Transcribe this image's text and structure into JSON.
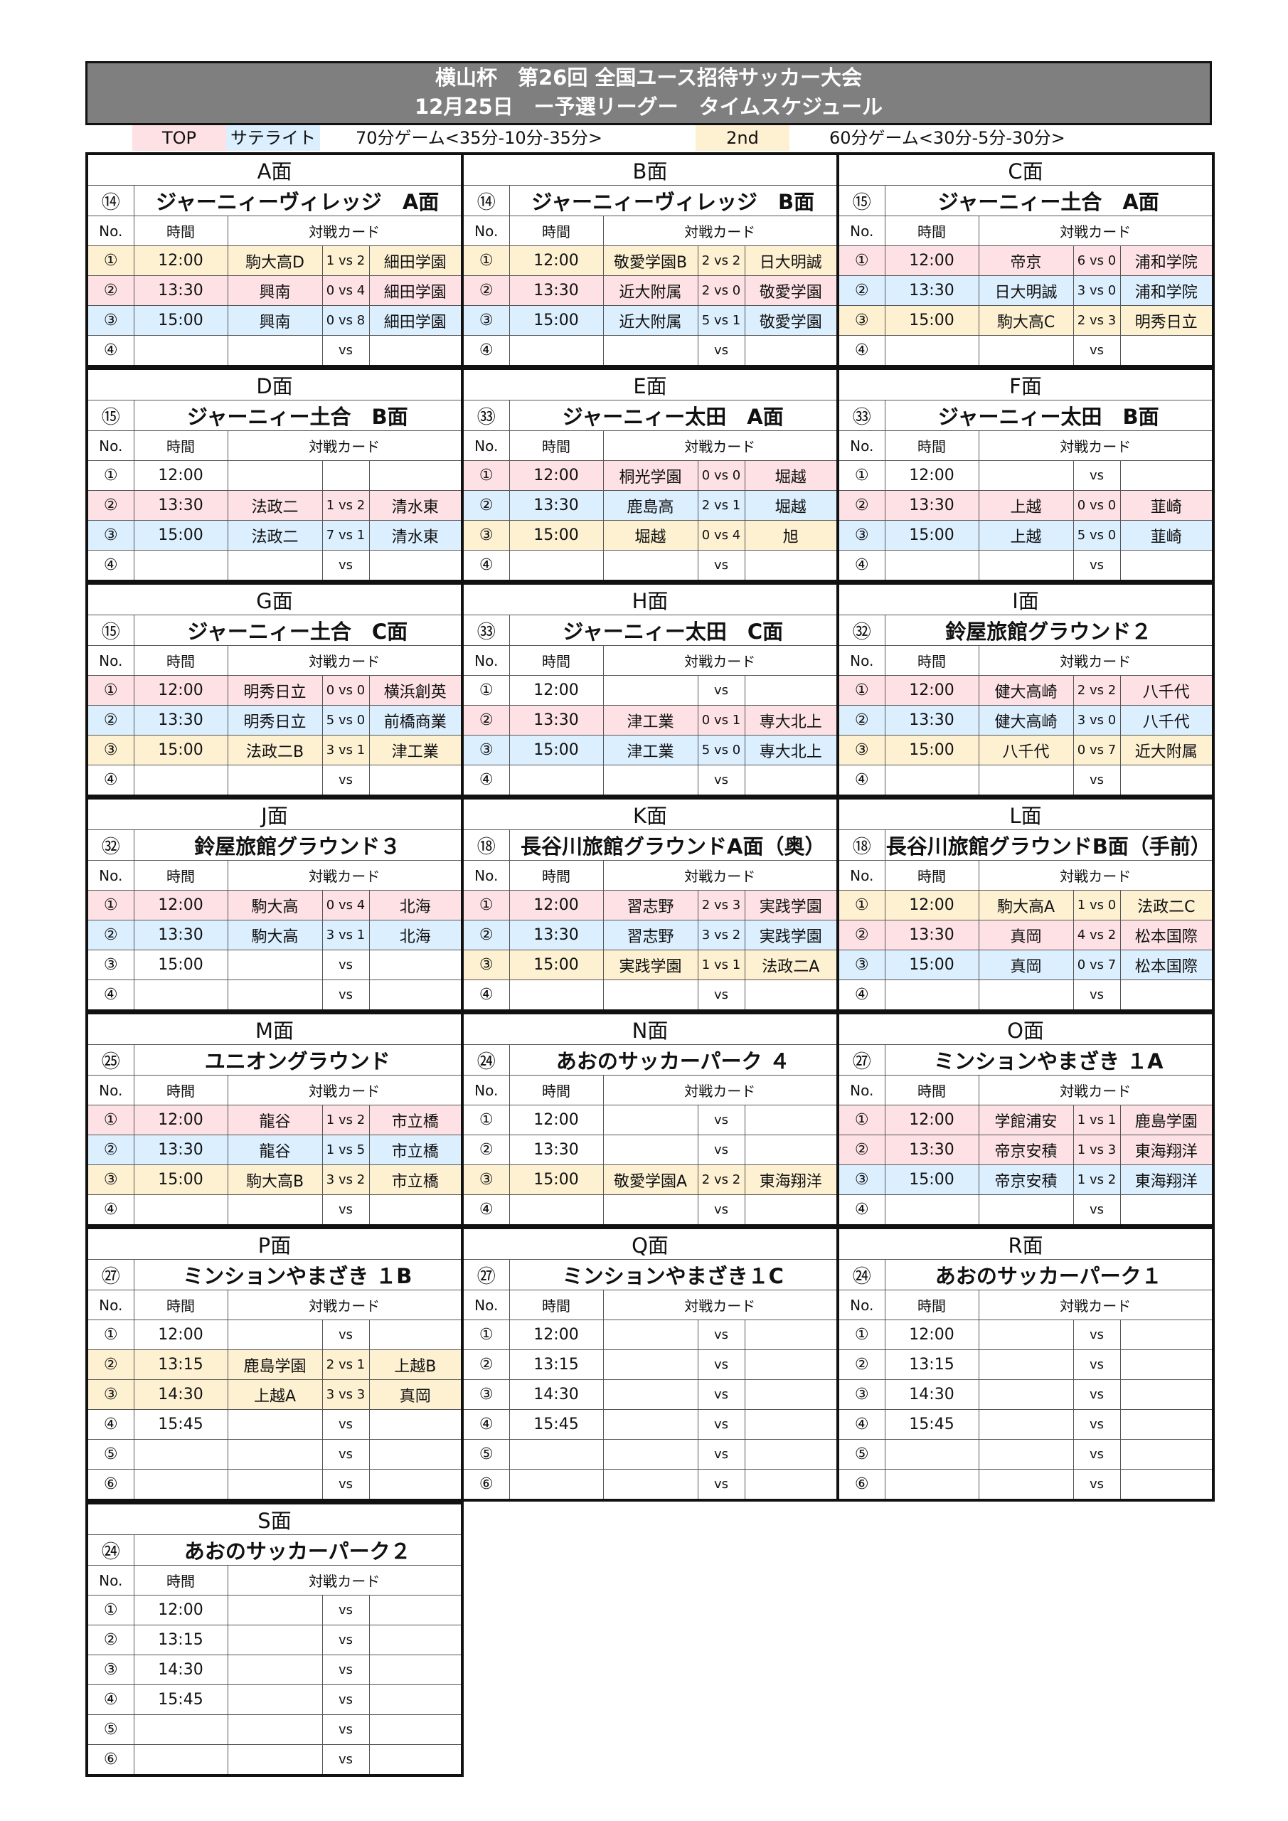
{
  "header": {
    "title_line1": "横山杯　第26回 全国ユース招待サッカー大会",
    "title_line2": "12月25日　ー予選リーグー　タイムスケジュール"
  },
  "legend": {
    "top": "TOP",
    "satellite": "サテライト",
    "rule_70": "70分ゲーム<35分-10分-35分>",
    "second": "2nd",
    "rule_60": "60分ゲーム<30分-5分-30分>",
    "colors": {
      "top": "#fde1e4",
      "satellite": "#dcefff",
      "second": "#fef1d2",
      "header": "#7f7f7f"
    }
  },
  "columns": {
    "no": "No.",
    "time": "時間",
    "match": "対戦カード"
  },
  "fields": [
    {
      "label": "A面",
      "venue_no": "⑭",
      "venue": "ジャーニィーヴィレッジ　A面",
      "rows": [
        {
          "no": "①",
          "time": "12:00",
          "home": "駒大高D",
          "score": "1 vs 2",
          "away": "細田学園",
          "type": "second"
        },
        {
          "no": "②",
          "time": "13:30",
          "home": "興南",
          "score": "0 vs 4",
          "away": "細田学園",
          "type": "top"
        },
        {
          "no": "③",
          "time": "15:00",
          "home": "興南",
          "score": "0 vs 8",
          "away": "細田学園",
          "type": "satellite"
        },
        {
          "no": "④",
          "time": "",
          "home": "",
          "score": "vs",
          "away": "",
          "type": ""
        }
      ]
    },
    {
      "label": "B面",
      "venue_no": "⑭",
      "venue": "ジャーニィーヴィレッジ　B面",
      "rows": [
        {
          "no": "①",
          "time": "12:00",
          "home": "敬愛学園B",
          "score": "2 vs 2",
          "away": "日大明誠",
          "type": "second"
        },
        {
          "no": "②",
          "time": "13:30",
          "home": "近大附属",
          "score": "2 vs 0",
          "away": "敬愛学園",
          "type": "top"
        },
        {
          "no": "③",
          "time": "15:00",
          "home": "近大附属",
          "score": "5 vs 1",
          "away": "敬愛学園",
          "type": "satellite"
        },
        {
          "no": "④",
          "time": "",
          "home": "",
          "score": "vs",
          "away": "",
          "type": ""
        }
      ]
    },
    {
      "label": "C面",
      "venue_no": "⑮",
      "venue": "ジャーニィー土合　A面",
      "rows": [
        {
          "no": "①",
          "time": "12:00",
          "home": "帝京",
          "score": "6 vs 0",
          "away": "浦和学院",
          "type": "top"
        },
        {
          "no": "②",
          "time": "13:30",
          "home": "日大明誠",
          "score": "3 vs 0",
          "away": "浦和学院",
          "type": "satellite"
        },
        {
          "no": "③",
          "time": "15:00",
          "home": "駒大高C",
          "score": "2 vs 3",
          "away": "明秀日立",
          "type": "second"
        },
        {
          "no": "④",
          "time": "",
          "home": "",
          "score": "vs",
          "away": "",
          "type": ""
        }
      ]
    },
    {
      "label": "D面",
      "venue_no": "⑮",
      "venue": "ジャーニィー土合　B面",
      "rows": [
        {
          "no": "①",
          "time": "12:00",
          "home": "",
          "score": "",
          "away": "",
          "type": ""
        },
        {
          "no": "②",
          "time": "13:30",
          "home": "法政二",
          "score": "1 vs 2",
          "away": "清水東",
          "type": "top"
        },
        {
          "no": "③",
          "time": "15:00",
          "home": "法政二",
          "score": "7 vs 1",
          "away": "清水東",
          "type": "satellite"
        },
        {
          "no": "④",
          "time": "",
          "home": "",
          "score": "vs",
          "away": "",
          "type": ""
        }
      ]
    },
    {
      "label": "E面",
      "venue_no": "㉝",
      "venue": "ジャーニィー太田　A面",
      "rows": [
        {
          "no": "①",
          "time": "12:00",
          "home": "桐光学園",
          "score": "0 vs 0",
          "away": "堀越",
          "type": "top"
        },
        {
          "no": "②",
          "time": "13:30",
          "home": "鹿島高",
          "score": "2 vs 1",
          "away": "堀越",
          "type": "satellite"
        },
        {
          "no": "③",
          "time": "15:00",
          "home": "堀越",
          "score": "0 vs 4",
          "away": "旭",
          "type": "second"
        },
        {
          "no": "④",
          "time": "",
          "home": "",
          "score": "vs",
          "away": "",
          "type": ""
        }
      ]
    },
    {
      "label": "F面",
      "venue_no": "㉝",
      "venue": "ジャーニィー太田　B面",
      "rows": [
        {
          "no": "①",
          "time": "12:00",
          "home": "",
          "score": "vs",
          "away": "",
          "type": ""
        },
        {
          "no": "②",
          "time": "13:30",
          "home": "上越",
          "score": "0 vs 0",
          "away": "韮崎",
          "type": "top"
        },
        {
          "no": "③",
          "time": "15:00",
          "home": "上越",
          "score": "5 vs 0",
          "away": "韮崎",
          "type": "satellite"
        },
        {
          "no": "④",
          "time": "",
          "home": "",
          "score": "vs",
          "away": "",
          "type": ""
        }
      ]
    },
    {
      "label": "G面",
      "venue_no": "⑮",
      "venue": "ジャーニィー土合　C面",
      "rows": [
        {
          "no": "①",
          "time": "12:00",
          "home": "明秀日立",
          "score": "0 vs 0",
          "away": "横浜創英",
          "type": "top"
        },
        {
          "no": "②",
          "time": "13:30",
          "home": "明秀日立",
          "score": "5 vs 0",
          "away": "前橋商業",
          "type": "satellite"
        },
        {
          "no": "③",
          "time": "15:00",
          "home": "法政二B",
          "score": "3 vs 1",
          "away": "津工業",
          "type": "second"
        },
        {
          "no": "④",
          "time": "",
          "home": "",
          "score": "vs",
          "away": "",
          "type": ""
        }
      ]
    },
    {
      "label": "H面",
      "venue_no": "㉝",
      "venue": "ジャーニィー太田　C面",
      "rows": [
        {
          "no": "①",
          "time": "12:00",
          "home": "",
          "score": "vs",
          "away": "",
          "type": ""
        },
        {
          "no": "②",
          "time": "13:30",
          "home": "津工業",
          "score": "0 vs 1",
          "away": "専大北上",
          "type": "top"
        },
        {
          "no": "③",
          "time": "15:00",
          "home": "津工業",
          "score": "5 vs 0",
          "away": "専大北上",
          "type": "satellite"
        },
        {
          "no": "④",
          "time": "",
          "home": "",
          "score": "vs",
          "away": "",
          "type": ""
        }
      ]
    },
    {
      "label": "I面",
      "venue_no": "㉜",
      "venue": "鈴屋旅館グラウンド２",
      "rows": [
        {
          "no": "①",
          "time": "12:00",
          "home": "健大高崎",
          "score": "2 vs 2",
          "away": "八千代",
          "type": "top"
        },
        {
          "no": "②",
          "time": "13:30",
          "home": "健大高崎",
          "score": "3 vs 0",
          "away": "八千代",
          "type": "satellite"
        },
        {
          "no": "③",
          "time": "15:00",
          "home": "八千代",
          "score": "0 vs 7",
          "away": "近大附属",
          "type": "second"
        },
        {
          "no": "④",
          "time": "",
          "home": "",
          "score": "vs",
          "away": "",
          "type": ""
        }
      ]
    },
    {
      "label": "J面",
      "venue_no": "㉜",
      "venue": "鈴屋旅館グラウンド３",
      "rows": [
        {
          "no": "①",
          "time": "12:00",
          "home": "駒大高",
          "score": "0 vs 4",
          "away": "北海",
          "type": "top"
        },
        {
          "no": "②",
          "time": "13:30",
          "home": "駒大高",
          "score": "3 vs 1",
          "away": "北海",
          "type": "satellite"
        },
        {
          "no": "③",
          "time": "15:00",
          "home": "",
          "score": "vs",
          "away": "",
          "type": ""
        },
        {
          "no": "④",
          "time": "",
          "home": "",
          "score": "vs",
          "away": "",
          "type": ""
        }
      ]
    },
    {
      "label": "K面",
      "venue_no": "⑱",
      "venue": "長谷川旅館グラウンドA面（奥）",
      "rows": [
        {
          "no": "①",
          "time": "12:00",
          "home": "習志野",
          "score": "2 vs 3",
          "away": "実践学園",
          "type": "top"
        },
        {
          "no": "②",
          "time": "13:30",
          "home": "習志野",
          "score": "3 vs 2",
          "away": "実践学園",
          "type": "satellite"
        },
        {
          "no": "③",
          "time": "15:00",
          "home": "実践学園",
          "score": "1 vs 1",
          "away": "法政二A",
          "type": "second"
        },
        {
          "no": "④",
          "time": "",
          "home": "",
          "score": "vs",
          "away": "",
          "type": ""
        }
      ]
    },
    {
      "label": "L面",
      "venue_no": "⑱",
      "venue": "長谷川旅館グラウンドB面（手前）",
      "rows": [
        {
          "no": "①",
          "time": "12:00",
          "home": "駒大高A",
          "score": "1 vs 0",
          "away": "法政二C",
          "type": "second"
        },
        {
          "no": "②",
          "time": "13:30",
          "home": "真岡",
          "score": "4 vs 2",
          "away": "松本国際",
          "type": "top"
        },
        {
          "no": "③",
          "time": "15:00",
          "home": "真岡",
          "score": "0 vs 7",
          "away": "松本国際",
          "type": "satellite"
        },
        {
          "no": "④",
          "time": "",
          "home": "",
          "score": "vs",
          "away": "",
          "type": ""
        }
      ]
    },
    {
      "label": "M面",
      "venue_no": "㉕",
      "venue": "ユニオングラウンド",
      "rows": [
        {
          "no": "①",
          "time": "12:00",
          "home": "龍谷",
          "score": "1 vs 2",
          "away": "市立橋",
          "type": "top"
        },
        {
          "no": "②",
          "time": "13:30",
          "home": "龍谷",
          "score": "1 vs 5",
          "away": "市立橋",
          "type": "satellite"
        },
        {
          "no": "③",
          "time": "15:00",
          "home": "駒大高B",
          "score": "3 vs 2",
          "away": "市立橋",
          "type": "second"
        },
        {
          "no": "④",
          "time": "",
          "home": "",
          "score": "vs",
          "away": "",
          "type": ""
        }
      ]
    },
    {
      "label": "N面",
      "venue_no": "㉔",
      "venue": "あおのサッカーパーク ４",
      "rows": [
        {
          "no": "①",
          "time": "12:00",
          "home": "",
          "score": "vs",
          "away": "",
          "type": ""
        },
        {
          "no": "②",
          "time": "13:30",
          "home": "",
          "score": "vs",
          "away": "",
          "type": ""
        },
        {
          "no": "③",
          "time": "15:00",
          "home": "敬愛学園A",
          "score": "2 vs 2",
          "away": "東海翔洋",
          "type": "second"
        },
        {
          "no": "④",
          "time": "",
          "home": "",
          "score": "vs",
          "away": "",
          "type": ""
        }
      ]
    },
    {
      "label": "O面",
      "venue_no": "㉗",
      "venue": "ミンションやまざき １A",
      "rows": [
        {
          "no": "①",
          "time": "12:00",
          "home": "学館浦安",
          "score": "1 vs 1",
          "away": "鹿島学園",
          "type": "top"
        },
        {
          "no": "②",
          "time": "13:30",
          "home": "帝京安積",
          "score": "1 vs 3",
          "away": "東海翔洋",
          "type": "top"
        },
        {
          "no": "③",
          "time": "15:00",
          "home": "帝京安積",
          "score": "1 vs 2",
          "away": "東海翔洋",
          "type": "satellite"
        },
        {
          "no": "④",
          "time": "",
          "home": "",
          "score": "vs",
          "away": "",
          "type": ""
        }
      ]
    },
    {
      "label": "P面",
      "venue_no": "㉗",
      "venue": "ミンションやまざき １B",
      "rows": [
        {
          "no": "①",
          "time": "12:00",
          "home": "",
          "score": "vs",
          "away": "",
          "type": ""
        },
        {
          "no": "②",
          "time": "13:15",
          "home": "鹿島学園",
          "score": "2 vs 1",
          "away": "上越B",
          "type": "second"
        },
        {
          "no": "③",
          "time": "14:30",
          "home": "上越A",
          "score": "3 vs 3",
          "away": "真岡",
          "type": "second"
        },
        {
          "no": "④",
          "time": "15:45",
          "home": "",
          "score": "vs",
          "away": "",
          "type": ""
        },
        {
          "no": "⑤",
          "time": "",
          "home": "",
          "score": "vs",
          "away": "",
          "type": ""
        },
        {
          "no": "⑥",
          "time": "",
          "home": "",
          "score": "vs",
          "away": "",
          "type": ""
        }
      ]
    },
    {
      "label": "Q面",
      "venue_no": "㉗",
      "venue": "ミンションやまざき１C",
      "rows": [
        {
          "no": "①",
          "time": "12:00",
          "home": "",
          "score": "vs",
          "away": "",
          "type": ""
        },
        {
          "no": "②",
          "time": "13:15",
          "home": "",
          "score": "vs",
          "away": "",
          "type": ""
        },
        {
          "no": "③",
          "time": "14:30",
          "home": "",
          "score": "vs",
          "away": "",
          "type": ""
        },
        {
          "no": "④",
          "time": "15:45",
          "home": "",
          "score": "vs",
          "away": "",
          "type": ""
        },
        {
          "no": "⑤",
          "time": "",
          "home": "",
          "score": "vs",
          "away": "",
          "type": ""
        },
        {
          "no": "⑥",
          "time": "",
          "home": "",
          "score": "vs",
          "away": "",
          "type": ""
        }
      ]
    },
    {
      "label": "R面",
      "venue_no": "㉔",
      "venue": "あおのサッカーパーク１",
      "rows": [
        {
          "no": "①",
          "time": "12:00",
          "home": "",
          "score": "vs",
          "away": "",
          "type": ""
        },
        {
          "no": "②",
          "time": "13:15",
          "home": "",
          "score": "vs",
          "away": "",
          "type": ""
        },
        {
          "no": "③",
          "time": "14:30",
          "home": "",
          "score": "vs",
          "away": "",
          "type": ""
        },
        {
          "no": "④",
          "time": "15:45",
          "home": "",
          "score": "vs",
          "away": "",
          "type": ""
        },
        {
          "no": "⑤",
          "time": "",
          "home": "",
          "score": "vs",
          "away": "",
          "type": ""
        },
        {
          "no": "⑥",
          "time": "",
          "home": "",
          "score": "vs",
          "away": "",
          "type": ""
        }
      ]
    },
    {
      "label": "S面",
      "venue_no": "㉔",
      "venue": "あおのサッカーパーク２",
      "rows": [
        {
          "no": "①",
          "time": "12:00",
          "home": "",
          "score": "vs",
          "away": "",
          "type": ""
        },
        {
          "no": "②",
          "time": "13:15",
          "home": "",
          "score": "vs",
          "away": "",
          "type": ""
        },
        {
          "no": "③",
          "time": "14:30",
          "home": "",
          "score": "vs",
          "away": "",
          "type": ""
        },
        {
          "no": "④",
          "time": "15:45",
          "home": "",
          "score": "vs",
          "away": "",
          "type": ""
        },
        {
          "no": "⑤",
          "time": "",
          "home": "",
          "score": "vs",
          "away": "",
          "type": ""
        },
        {
          "no": "⑥",
          "time": "",
          "home": "",
          "score": "vs",
          "away": "",
          "type": ""
        }
      ]
    }
  ]
}
